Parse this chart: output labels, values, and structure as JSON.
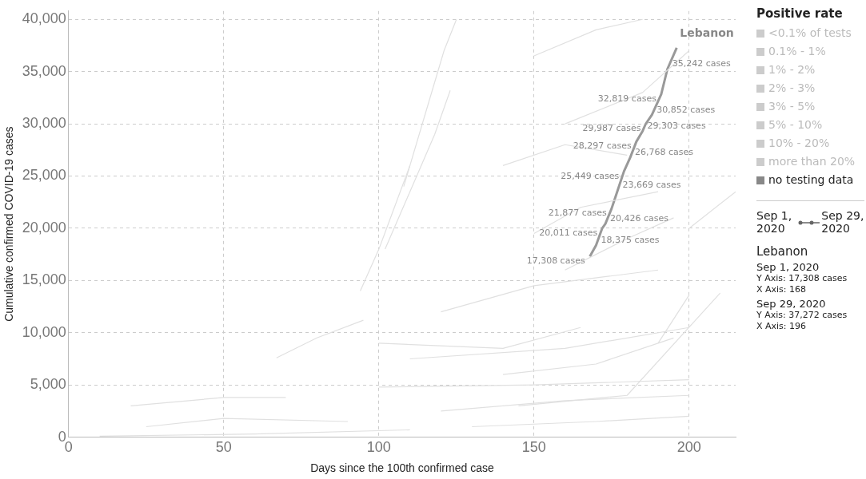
{
  "chart_data": {
    "type": "line",
    "xlabel": "Days since the 100th confirmed case",
    "ylabel": "Cumulative confirmed COVID-19 cases",
    "xlim": [
      0,
      215
    ],
    "xticks": [
      0,
      50,
      100,
      150,
      200
    ],
    "ylim": [
      0,
      40800
    ],
    "yticks": [
      {
        "value": 0,
        "label": "0"
      },
      {
        "value": 5000,
        "label": "5,000"
      },
      {
        "value": 10000,
        "label": "10,000"
      },
      {
        "value": 15000,
        "label": "15,000"
      },
      {
        "value": 20000,
        "label": "20,000"
      },
      {
        "value": 25000,
        "label": "25,000"
      },
      {
        "value": 30000,
        "label": "30,000"
      },
      {
        "value": 35000,
        "label": "35,000"
      },
      {
        "value": 40000,
        "label": "40,000"
      }
    ],
    "grid": true,
    "legend": false,
    "marker": "none",
    "line_style": "solid",
    "legend_title": "Positive rate",
    "annotations": [
      "<0.1% of tests",
      "0.1% - 1%",
      "1% - 2%",
      "2% - 3%",
      "3% - 5%",
      "5% - 10%",
      "10% - 20%",
      "more than 20%",
      "no testing data",
      "Sep 1, 2020",
      "Sep 29, 2020",
      "Lebanon",
      "Sep 1, 2020",
      "Y Axis: 17,308 cases",
      "X Axis: 168",
      "Sep 29, 2020",
      "Y Axis: 37,272 cases",
      "X Axis: 196"
    ],
    "series": [
      {
        "color": "#e0e0e0",
        "x": [
          94,
          100,
          105,
          110
        ],
        "values": [
          14000,
          18000,
          22000,
          26000
        ]
      },
      {
        "color": "#e0e0e0",
        "x": [
          102,
          110,
          118,
          123
        ],
        "values": [
          18000,
          23500,
          29000,
          33200
        ]
      },
      {
        "color": "#e0e0e0",
        "x": [
          108,
          115,
          121,
          125
        ],
        "values": [
          24000,
          31000,
          37000,
          40000
        ]
      },
      {
        "color": "#e0e0e0",
        "x": [
          67,
          80,
          95
        ],
        "values": [
          7600,
          9500,
          11200
        ]
      },
      {
        "color": "#e0e0e0",
        "x": [
          120,
          150,
          190
        ],
        "values": [
          12000,
          14500,
          16000
        ]
      },
      {
        "color": "#e0e0e0",
        "x": [
          140,
          160,
          180
        ],
        "values": [
          26000,
          28000,
          27000
        ]
      },
      {
        "color": "#e0e0e0",
        "x": [
          150,
          165,
          190
        ],
        "values": [
          19500,
          22000,
          23500
        ]
      },
      {
        "color": "#e0e0e0",
        "x": [
          160,
          185,
          200
        ],
        "values": [
          30000,
          33000,
          37000
        ]
      },
      {
        "color": "#e0e0e0",
        "x": [
          150,
          170,
          185
        ],
        "values": [
          36500,
          39000,
          40000
        ]
      },
      {
        "color": "#e0e0e0",
        "x": [
          190,
          200
        ],
        "values": [
          9000,
          13600
        ]
      },
      {
        "color": "#e0e0e0",
        "x": [
          200,
          215
        ],
        "values": [
          20000,
          23500
        ]
      },
      {
        "color": "#e0e0e0",
        "x": [
          20,
          50,
          70
        ],
        "values": [
          3000,
          3800,
          3800
        ]
      },
      {
        "color": "#e0e0e0",
        "x": [
          25,
          50,
          90
        ],
        "values": [
          1000,
          1800,
          1500
        ]
      },
      {
        "color": "#e0e0e0",
        "x": [
          10,
          60,
          110
        ],
        "values": [
          100,
          300,
          700
        ]
      },
      {
        "color": "#e0e0e0",
        "x": [
          100,
          150,
          200
        ],
        "values": [
          4800,
          5000,
          5500
        ]
      },
      {
        "color": "#e0e0e0",
        "x": [
          110,
          160,
          200
        ],
        "values": [
          7500,
          8500,
          10500
        ]
      },
      {
        "color": "#e0e0e0",
        "x": [
          120,
          160,
          200
        ],
        "values": [
          2500,
          3500,
          4000
        ]
      },
      {
        "color": "#e0e0e0",
        "x": [
          130,
          170,
          200
        ],
        "values": [
          1000,
          1500,
          2000
        ]
      },
      {
        "color": "#e0e0e0",
        "x": [
          140,
          170,
          195
        ],
        "values": [
          6000,
          7000,
          9500
        ]
      },
      {
        "color": "#e0e0e0",
        "x": [
          160,
          180,
          195
        ],
        "values": [
          16000,
          19000,
          21000
        ]
      },
      {
        "color": "#e0e0e0",
        "x": [
          145,
          180,
          210
        ],
        "values": [
          3000,
          4000,
          13800
        ]
      },
      {
        "color": "#e0e0e0",
        "x": [
          100,
          140,
          165
        ],
        "values": [
          9000,
          8500,
          10500
        ]
      },
      {
        "name": "Lebanon",
        "color": "#999999",
        "x": [
          168,
          170,
          172,
          173,
          175,
          177,
          179,
          181,
          183,
          185,
          186,
          188,
          191,
          193,
          196
        ],
        "values": [
          17308,
          18375,
          20011,
          20426,
          21877,
          23669,
          25449,
          26768,
          28297,
          29303,
          29987,
          30852,
          32819,
          35242,
          37272
        ],
        "value_labels": [
          "17,308 cases",
          "18,375 cases",
          "20,011 cases",
          "20,426 cases",
          "21,877 cases",
          "23,669 cases",
          "25,449 cases",
          "26,768 cases",
          "28,297 cases",
          "29,303 cases",
          "29,987 cases",
          "30,852 cases",
          "32,819 cases",
          "35,242 cases",
          null
        ]
      }
    ]
  }
}
